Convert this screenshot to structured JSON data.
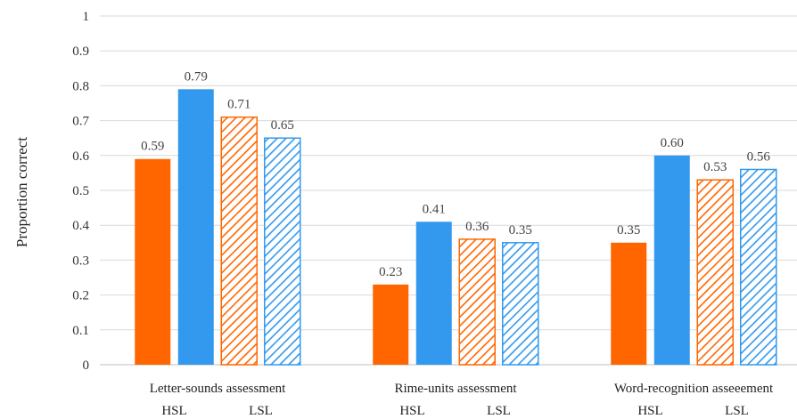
{
  "chart_data": {
    "type": "bar",
    "ylabel": "Proportion correct",
    "ylim": [
      0,
      1
    ],
    "yticks": [
      "0",
      "0.1",
      "0.2",
      "0.3",
      "0.4",
      "0.5",
      "0.6",
      "0.7",
      "0.8",
      "0.9",
      "1"
    ],
    "ytick_values": [
      0,
      0.1,
      0.2,
      0.3,
      0.4,
      0.5,
      0.6,
      0.7,
      0.8,
      0.9,
      1
    ],
    "grid": true,
    "categories": [
      "Letter-sounds assessment",
      "Rime-units assessment",
      "Word-recognition asseeement"
    ],
    "group_sublabels": [
      "HSL",
      "LSL"
    ],
    "series": [
      {
        "values": [
          0.59,
          0.23,
          0.35
        ],
        "labels": [
          "0.59",
          "0.23",
          "0.35"
        ],
        "color": "#ff6600",
        "fill": "solid"
      },
      {
        "values": [
          0.79,
          0.41,
          0.6
        ],
        "labels": [
          "0.79",
          "0.41",
          "0.60"
        ],
        "color": "#3399ee",
        "fill": "solid"
      },
      {
        "values": [
          0.71,
          0.36,
          0.53
        ],
        "labels": [
          "0.71",
          "0.36",
          "0.53"
        ],
        "color": "#ff6600",
        "fill": "hatched"
      },
      {
        "values": [
          0.65,
          0.35,
          0.56
        ],
        "labels": [
          "0.65",
          "0.35",
          "0.56"
        ],
        "color": "#3399ee",
        "fill": "hatched"
      }
    ]
  }
}
